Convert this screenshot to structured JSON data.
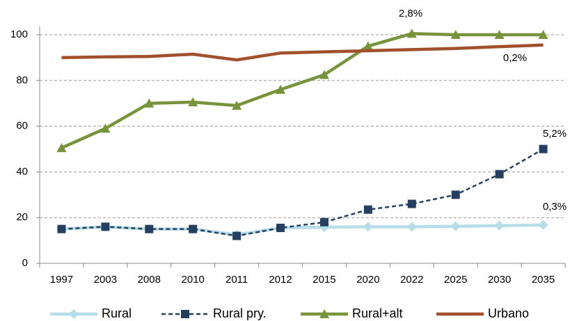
{
  "chart_data": {
    "type": "line",
    "categories": [
      "1997",
      "2003",
      "2008",
      "2010",
      "2011",
      "2012",
      "2015",
      "2020",
      "2022",
      "2025",
      "2030",
      "2035"
    ],
    "series": [
      {
        "name": "Rural",
        "color": "#b7dde8",
        "marker": "diamond",
        "dashed": false,
        "values": [
          15,
          16,
          15,
          15,
          12.5,
          15.5,
          15.8,
          16,
          16,
          16.2,
          16.5,
          16.8
        ]
      },
      {
        "name": "Rural pry.",
        "color": "#243f60",
        "marker": "square",
        "dashed": true,
        "values": [
          15,
          16,
          15,
          15,
          12,
          15.5,
          18,
          23.5,
          26,
          30,
          39,
          50
        ]
      },
      {
        "name": "Rural+alt",
        "color": "#77933c",
        "marker": "triangle",
        "dashed": false,
        "values": [
          50.5,
          59,
          70,
          70.5,
          69,
          76,
          82.5,
          95,
          100.5,
          100,
          100,
          100
        ]
      },
      {
        "name": "Urbano",
        "color": "#a0502a",
        "marker": "none",
        "dashed": false,
        "values": [
          90,
          90.3,
          90.5,
          91.5,
          89,
          92,
          92.5,
          93,
          93.5,
          94,
          94.8,
          95.5
        ]
      }
    ],
    "annotations": [
      "2,8%",
      "0,2%",
      "5,2%",
      "0,3%"
    ],
    "ylim": [
      0,
      100
    ],
    "yticks": [
      0,
      20,
      40,
      60,
      80,
      100
    ],
    "grid": true,
    "legend": "bottom"
  }
}
